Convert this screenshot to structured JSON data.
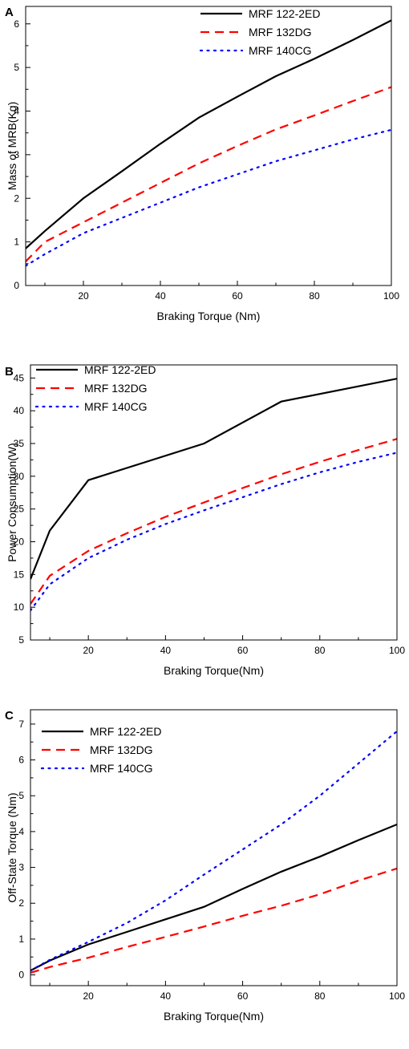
{
  "chart_data": [
    {
      "type": "line",
      "panel": "A",
      "xlabel": "Braking Torque (Nm)",
      "ylabel": "Mass of MRB(Kg)",
      "xlim": [
        5,
        100
      ],
      "ylim": [
        0,
        6.4
      ],
      "xticks": [
        20,
        40,
        60,
        80,
        100
      ],
      "yticks": [
        0,
        1,
        2,
        3,
        4,
        5,
        6
      ],
      "grid": false,
      "legend": "top-right",
      "series": [
        {
          "name": "MRF 122-2ED",
          "color": "#000000",
          "dash": "solid",
          "x": [
            5,
            10,
            20,
            30,
            40,
            50,
            60,
            70,
            80,
            90,
            100
          ],
          "y": [
            0.85,
            1.25,
            2.0,
            2.62,
            3.25,
            3.85,
            4.33,
            4.8,
            5.2,
            5.63,
            6.08
          ]
        },
        {
          "name": "MRF 132DG",
          "color": "#ff0000",
          "dash": "dashed",
          "x": [
            5,
            10,
            20,
            30,
            40,
            50,
            60,
            70,
            80,
            90,
            100
          ],
          "y": [
            0.55,
            1.0,
            1.45,
            1.9,
            2.35,
            2.8,
            3.2,
            3.58,
            3.9,
            4.23,
            4.55
          ]
        },
        {
          "name": "MRF 140CG",
          "color": "#0000ff",
          "dash": "dotted",
          "x": [
            5,
            10,
            20,
            30,
            40,
            50,
            60,
            70,
            80,
            90,
            100
          ],
          "y": [
            0.45,
            0.72,
            1.2,
            1.55,
            1.9,
            2.25,
            2.55,
            2.85,
            3.1,
            3.35,
            3.57
          ]
        }
      ]
    },
    {
      "type": "line",
      "panel": "B",
      "xlabel": "Braking Torque(Nm)",
      "ylabel": "Power Consumption(W)",
      "xlim": [
        5,
        100
      ],
      "ylim": [
        5,
        47
      ],
      "xticks": [
        20,
        40,
        60,
        80,
        100
      ],
      "yticks": [
        5,
        10,
        15,
        20,
        25,
        30,
        35,
        40,
        45
      ],
      "grid": false,
      "legend": "top-left",
      "series": [
        {
          "name": "MRF 122-2ED",
          "color": "#000000",
          "dash": "solid",
          "x": [
            5,
            10,
            20,
            50,
            70,
            100
          ],
          "y": [
            14.3,
            21.7,
            29.4,
            35.0,
            41.4,
            44.9
          ]
        },
        {
          "name": "MRF 132DG",
          "color": "#ff0000",
          "dash": "dashed",
          "x": [
            5,
            10,
            20,
            30,
            40,
            50,
            60,
            70,
            80,
            90,
            100
          ],
          "y": [
            10.5,
            14.8,
            18.6,
            21.3,
            23.8,
            26.0,
            28.2,
            30.3,
            32.2,
            34.0,
            35.7
          ]
        },
        {
          "name": "MRF 140CG",
          "color": "#0000ff",
          "dash": "dotted",
          "x": [
            5,
            10,
            20,
            30,
            40,
            50,
            60,
            70,
            80,
            90,
            100
          ],
          "y": [
            9.5,
            13.5,
            17.5,
            20.3,
            22.7,
            24.8,
            26.8,
            28.8,
            30.6,
            32.2,
            33.6
          ]
        }
      ]
    },
    {
      "type": "line",
      "panel": "C",
      "xlabel": "Braking Torque(Nm)",
      "ylabel": "Off-State Torque (Nm)",
      "xlim": [
        5,
        100
      ],
      "ylim": [
        -0.3,
        7.4
      ],
      "xticks": [
        20,
        40,
        60,
        80,
        100
      ],
      "yticks": [
        0,
        1,
        2,
        3,
        4,
        5,
        6,
        7
      ],
      "grid": false,
      "legend": "top-left",
      "series": [
        {
          "name": "MRF 122-2ED",
          "color": "#000000",
          "dash": "solid",
          "x": [
            5,
            10,
            20,
            30,
            40,
            50,
            60,
            70,
            80,
            90,
            100
          ],
          "y": [
            0.12,
            0.4,
            0.85,
            1.2,
            1.55,
            1.9,
            2.4,
            2.88,
            3.3,
            3.76,
            4.2
          ]
        },
        {
          "name": "MRF 132DG",
          "color": "#ff0000",
          "dash": "dashed",
          "x": [
            5,
            10,
            20,
            30,
            40,
            50,
            60,
            70,
            80,
            90,
            100
          ],
          "y": [
            0.06,
            0.22,
            0.48,
            0.78,
            1.06,
            1.35,
            1.65,
            1.93,
            2.25,
            2.63,
            2.97
          ]
        },
        {
          "name": "MRF 140CG",
          "color": "#0000ff",
          "dash": "dotted",
          "x": [
            5,
            10,
            20,
            30,
            40,
            50,
            60,
            70,
            80,
            90,
            100
          ],
          "y": [
            0.12,
            0.42,
            0.92,
            1.45,
            2.08,
            2.8,
            3.5,
            4.2,
            5.0,
            5.9,
            6.8
          ]
        }
      ]
    }
  ]
}
